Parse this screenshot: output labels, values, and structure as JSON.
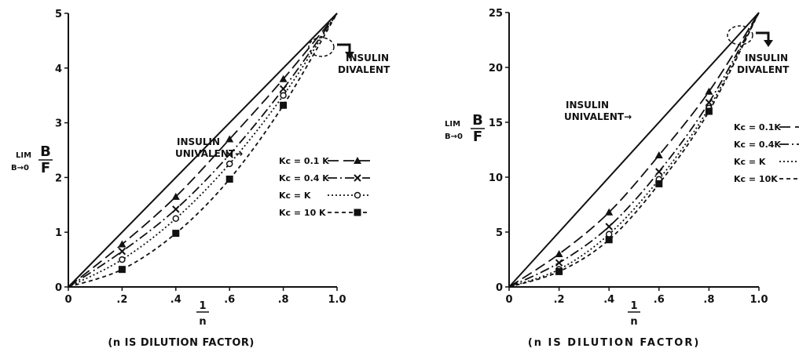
{
  "chart_data": [
    {
      "type": "line",
      "xlabel_num": "1",
      "xlabel_den": "n",
      "xlabel_note": "(n IS DILUTION FACTOR)",
      "ylabel_lim": "LIM",
      "ylabel_sub": "B→0",
      "ylabel_num": "B",
      "ylabel_den": "F",
      "xlim": [
        0,
        1.0
      ],
      "ylim": [
        0,
        5
      ],
      "xticks": [
        "0",
        ".2",
        ".4",
        ".6",
        ".8",
        "1.0"
      ],
      "yticks": [
        "0",
        "1",
        "2",
        "3",
        "4",
        "5"
      ],
      "annotations": {
        "univalent": [
          "INSULIN",
          "UNIVALENT→"
        ],
        "divalent": [
          "INSULIN",
          "DIVALENT"
        ]
      },
      "reference_line": {
        "name": "INSULIN UNIVALENT",
        "x": [
          0,
          1.0
        ],
        "y": [
          0,
          5
        ]
      },
      "series": [
        {
          "name": "Kc = 0.1K",
          "legend_label": "Kc = 0.1 K",
          "marker": "triangle",
          "dash": "long",
          "x": [
            0,
            0.2,
            0.4,
            0.6,
            0.8,
            1.0
          ],
          "y": [
            0,
            0.78,
            1.65,
            2.7,
            3.8,
            5.0
          ]
        },
        {
          "name": "Kc = 0.4K",
          "legend_label": "Kc = 0.4 K",
          "marker": "x",
          "dash": "dashdot",
          "x": [
            0,
            0.2,
            0.4,
            0.6,
            0.8,
            1.0
          ],
          "y": [
            0,
            0.65,
            1.42,
            2.42,
            3.62,
            5.0
          ]
        },
        {
          "name": "Kc = K",
          "legend_label": "Kc = K",
          "marker": "circle",
          "dash": "dotted",
          "x": [
            0,
            0.2,
            0.4,
            0.6,
            0.8,
            1.0
          ],
          "y": [
            0,
            0.5,
            1.25,
            2.25,
            3.5,
            5.0
          ]
        },
        {
          "name": "Kc = 10K",
          "legend_label": "Kc = 10 K",
          "marker": "square",
          "dash": "short",
          "x": [
            0,
            0.2,
            0.4,
            0.6,
            0.8,
            1.0
          ],
          "y": [
            0,
            0.32,
            0.98,
            1.97,
            3.32,
            5.0
          ]
        }
      ]
    },
    {
      "type": "line",
      "xlabel_num": "1",
      "xlabel_den": "n",
      "xlabel_note": "(n IS DILUTION FACTOR)",
      "ylabel_lim": "LIM",
      "ylabel_sub": "B→0",
      "ylabel_num": "B",
      "ylabel_den": "F",
      "xlim": [
        0,
        1.0
      ],
      "ylim": [
        0,
        25
      ],
      "xticks": [
        "0",
        ".2",
        ".4",
        ".6",
        ".8",
        "1.0"
      ],
      "yticks": [
        "0",
        "5",
        "10",
        "15",
        "20",
        "25"
      ],
      "annotations": {
        "univalent": [
          "INSULIN",
          "UNIVALENT→"
        ],
        "divalent": [
          "INSULIN",
          "DIVALENT"
        ]
      },
      "reference_line": {
        "name": "INSULIN UNIVALENT",
        "x": [
          0,
          1.0
        ],
        "y": [
          0,
          25
        ]
      },
      "series": [
        {
          "name": "Kc = 0.1K",
          "legend_label": "Kc = 0.1K",
          "marker": "triangle",
          "dash": "long",
          "x": [
            0,
            0.2,
            0.4,
            0.6,
            0.8,
            1.0
          ],
          "y": [
            0,
            3.0,
            6.8,
            12.0,
            17.8,
            25.0
          ]
        },
        {
          "name": "Kc = 0.4K",
          "legend_label": "Kc = 0.4K",
          "marker": "x",
          "dash": "dashdot",
          "x": [
            0,
            0.2,
            0.4,
            0.6,
            0.8,
            1.0
          ],
          "y": [
            0,
            2.2,
            5.5,
            10.5,
            16.8,
            25.0
          ]
        },
        {
          "name": "Kc = K",
          "legend_label": "Kc = K",
          "marker": "circle",
          "dash": "dotted",
          "x": [
            0,
            0.2,
            0.4,
            0.6,
            0.8,
            1.0
          ],
          "y": [
            0,
            1.6,
            4.8,
            9.8,
            16.3,
            25.0
          ]
        },
        {
          "name": "Kc = 10K",
          "legend_label": "Kc = 10K",
          "marker": "square",
          "dash": "short",
          "x": [
            0,
            0.2,
            0.4,
            0.6,
            0.8,
            1.0
          ],
          "y": [
            0,
            1.4,
            4.3,
            9.4,
            16.0,
            25.0
          ]
        }
      ]
    }
  ]
}
